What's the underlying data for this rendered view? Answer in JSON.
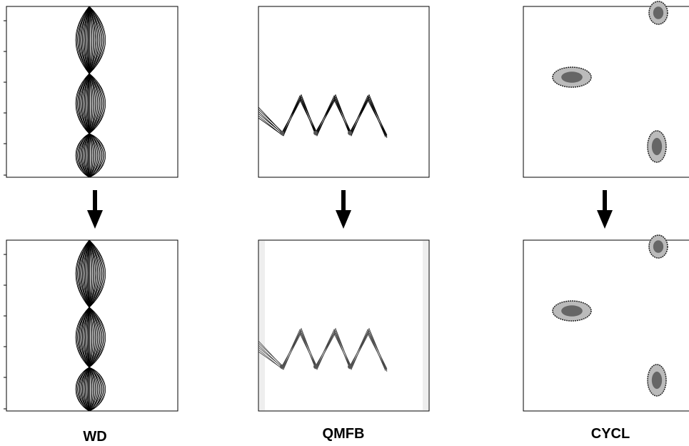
{
  "columns": [
    {
      "label": "WD"
    },
    {
      "label": "QMFB"
    },
    {
      "label": "CYCL"
    }
  ]
}
